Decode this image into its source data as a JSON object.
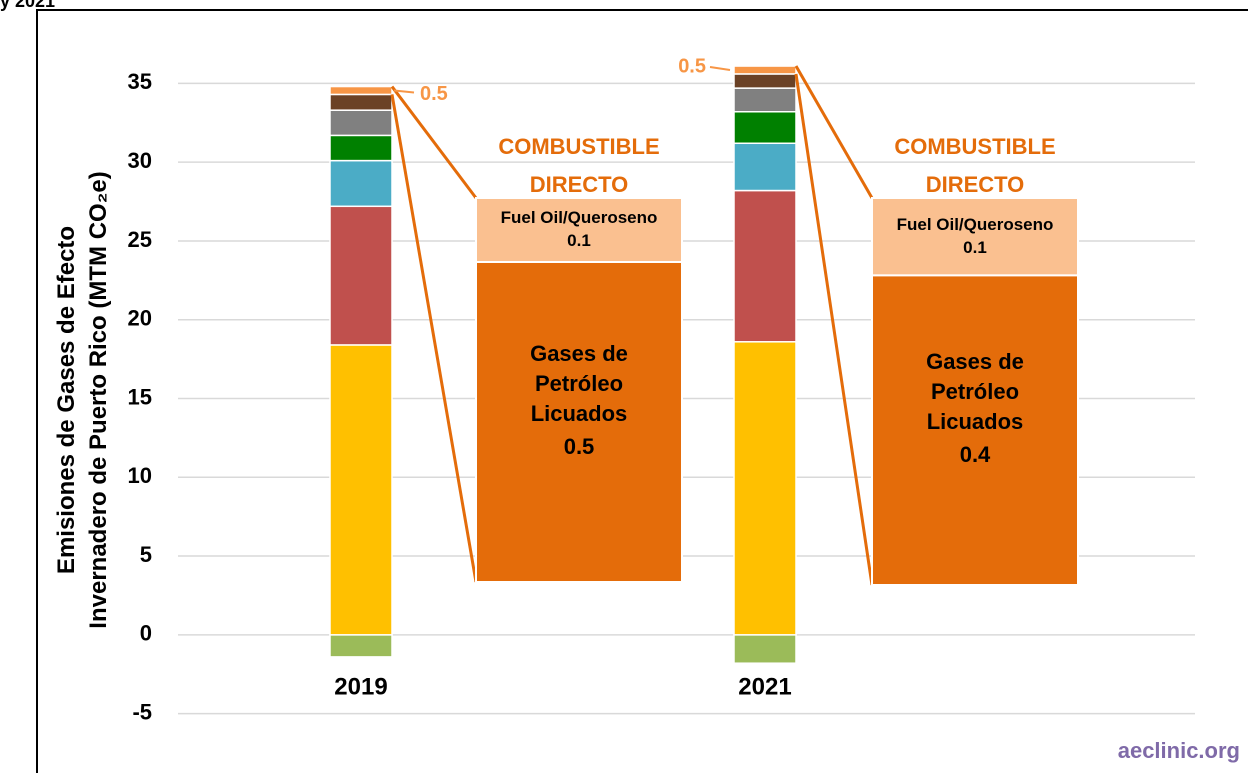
{
  "chart_data": {
    "type": "bar",
    "stacked": true,
    "title": "y 2021",
    "ylabel": [
      "Emisiones de Gases de Efecto",
      "Invernadero de Puerto Rico (MTM CO₂e)"
    ],
    "categories": [
      "2019",
      "2021"
    ],
    "series": [
      {
        "color": "#9bbb59",
        "values": [
          -1.4,
          -1.8
        ]
      },
      {
        "color": "#ffc000",
        "values": [
          18.4,
          18.6
        ]
      },
      {
        "color": "#c0504d",
        "values": [
          8.8,
          9.6
        ]
      },
      {
        "color": "#4bacc6",
        "values": [
          2.9,
          3.0
        ]
      },
      {
        "color": "#008000",
        "values": [
          1.6,
          2.0
        ]
      },
      {
        "color": "#808080",
        "values": [
          1.6,
          1.5
        ]
      },
      {
        "color": "#6b4226",
        "values": [
          1.0,
          0.9
        ]
      },
      {
        "color": "#f79646",
        "values": [
          0.5,
          0.5
        ]
      }
    ],
    "ylim": [
      -7.5,
      37.5
    ],
    "yticks": [
      -5,
      0,
      5,
      10,
      15,
      20,
      25,
      30,
      35
    ],
    "grid": true,
    "breakouts": [
      {
        "title": "COMBUSTIBLE DIRECTO",
        "items": [
          {
            "name": "Fuel Oil/Queroseno",
            "value": 0.1,
            "color": "#fac090"
          },
          {
            "name": "Gases de Petróleo Licuados",
            "value": 0.5,
            "color": "#e46c0a"
          }
        ]
      },
      {
        "title": "COMBUSTIBLE DIRECTO",
        "items": [
          {
            "name": "Fuel Oil/Queroseno",
            "value": 0.1,
            "color": "#fac090"
          },
          {
            "name": "Gases de Petróleo Licuados",
            "value": 0.4,
            "color": "#e46c0a"
          }
        ]
      }
    ],
    "source": "aeclinic.org"
  }
}
